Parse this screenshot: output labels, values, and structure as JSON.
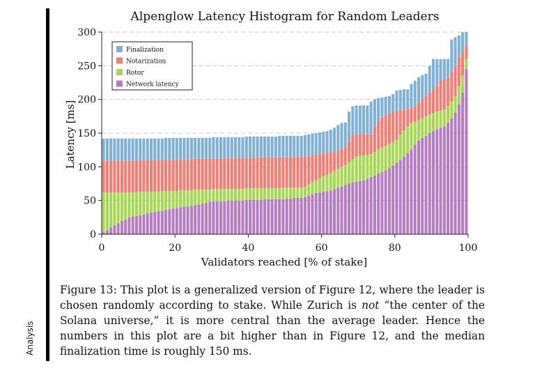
{
  "side_label": "Analysis",
  "chart_data": {
    "type": "bar",
    "stacked": true,
    "title": "Alpenglow Latency Histogram for Random Leaders",
    "xlabel": "Validators reached [% of stake]",
    "ylabel": "Latency [ms]",
    "xlim": [
      0,
      100
    ],
    "ylim": [
      0,
      300
    ],
    "x_ticks": [
      0,
      20,
      40,
      60,
      80,
      100
    ],
    "y_ticks": [
      0,
      50,
      100,
      150,
      200,
      250,
      300
    ],
    "grid": "horizontal dashed",
    "legend_position": "top-left",
    "colors": {
      "finalization": "#7eb0d8",
      "notarization": "#f47c73",
      "rotor": "#a6d854",
      "network": "#b57cc4"
    },
    "legend": [
      "Finalization",
      "Notarization",
      "Rotor",
      "Network latency"
    ],
    "series_order_bottom_to_top": [
      "network",
      "rotor",
      "notarization",
      "finalization"
    ],
    "x": [
      1,
      2,
      3,
      4,
      5,
      6,
      7,
      8,
      9,
      10,
      11,
      12,
      13,
      14,
      15,
      16,
      17,
      18,
      19,
      20,
      21,
      22,
      23,
      24,
      25,
      26,
      27,
      28,
      29,
      30,
      31,
      32,
      33,
      34,
      35,
      36,
      37,
      38,
      39,
      40,
      41,
      42,
      43,
      44,
      45,
      46,
      47,
      48,
      49,
      50,
      51,
      52,
      53,
      54,
      55,
      56,
      57,
      58,
      59,
      60,
      61,
      62,
      63,
      64,
      65,
      66,
      67,
      68,
      69,
      70,
      71,
      72,
      73,
      74,
      75,
      76,
      77,
      78,
      79,
      80,
      81,
      82,
      83,
      84,
      85,
      86,
      87,
      88,
      89,
      90,
      91,
      92,
      93,
      94,
      95,
      96,
      97,
      98,
      99,
      100
    ],
    "network_latency": [
      3,
      6,
      10,
      13,
      16,
      20,
      22,
      25,
      26,
      27,
      28,
      29,
      31,
      32,
      33,
      34,
      35,
      36,
      37,
      38,
      39,
      40,
      41,
      41,
      42,
      43,
      44,
      45,
      46,
      48,
      49,
      49,
      49,
      49,
      50,
      50,
      50,
      50,
      50,
      51,
      51,
      51,
      51,
      51,
      52,
      52,
      52,
      52,
      52,
      52,
      53,
      53,
      54,
      54,
      54,
      55,
      57,
      59,
      61,
      62,
      63,
      64,
      65,
      67,
      69,
      71,
      73,
      75,
      77,
      78,
      79,
      80,
      82,
      85,
      87,
      90,
      92,
      95,
      98,
      102,
      106,
      110,
      115,
      120,
      126,
      133,
      139,
      143,
      146,
      150,
      153,
      156,
      158,
      160,
      165,
      172,
      180,
      193,
      210,
      245
    ],
    "rotor_end": [
      62,
      62,
      62,
      62,
      62,
      62,
      62,
      62,
      62,
      62,
      63,
      63,
      63,
      63,
      63,
      63,
      64,
      64,
      64,
      64,
      64,
      65,
      65,
      65,
      65,
      66,
      66,
      66,
      66,
      66,
      67,
      67,
      67,
      67,
      67,
      67,
      67,
      67,
      67,
      68,
      68,
      68,
      68,
      68,
      68,
      68,
      68,
      68,
      68,
      69,
      69,
      69,
      69,
      69,
      69,
      70,
      74,
      77,
      80,
      83,
      86,
      88,
      91,
      94,
      97,
      100,
      103,
      107,
      111,
      115,
      116,
      117,
      118,
      119,
      122,
      126,
      128,
      131,
      134,
      137,
      140,
      148,
      154,
      160,
      165,
      167,
      169,
      172,
      175,
      178,
      180,
      182,
      183,
      185,
      190,
      197,
      205,
      220,
      235,
      260
    ],
    "notarization_end": [
      109,
      109,
      109,
      109,
      109,
      109,
      109,
      109,
      109,
      109,
      110,
      110,
      110,
      110,
      110,
      110,
      110,
      110,
      110,
      111,
      111,
      111,
      111,
      111,
      111,
      112,
      112,
      112,
      112,
      112,
      112,
      112,
      112,
      113,
      113,
      113,
      113,
      113,
      113,
      113,
      113,
      114,
      114,
      114,
      114,
      114,
      114,
      114,
      114,
      114,
      114,
      114,
      115,
      115,
      115,
      115,
      116,
      117,
      118,
      119,
      120,
      121,
      122,
      123,
      124,
      127,
      130,
      138,
      147,
      148,
      149,
      148,
      148,
      148,
      160,
      168,
      174,
      177,
      179,
      181,
      183,
      184,
      185,
      186,
      187,
      190,
      195,
      200,
      205,
      210,
      215,
      220,
      228,
      230,
      232,
      240,
      250,
      262,
      270,
      280
    ],
    "finalization_end": [
      142,
      142,
      142,
      142,
      142,
      142,
      142,
      142,
      142,
      142,
      142,
      142,
      142,
      142,
      142,
      142,
      142,
      143,
      143,
      143,
      143,
      143,
      143,
      143,
      143,
      143,
      143,
      143,
      143,
      143,
      144,
      144,
      144,
      144,
      144,
      144,
      144,
      144,
      144,
      145,
      145,
      145,
      145,
      145,
      145,
      145,
      145,
      145,
      146,
      146,
      146,
      146,
      146,
      146,
      146,
      147,
      148,
      149,
      150,
      151,
      152,
      153,
      155,
      158,
      162,
      165,
      166,
      182,
      190,
      191,
      191,
      191,
      191,
      197,
      200,
      202,
      203,
      204,
      205,
      208,
      213,
      214,
      215,
      215,
      223,
      228,
      233,
      236,
      238,
      250,
      260,
      260,
      260,
      260,
      260,
      289,
      292,
      295,
      300,
      300
    ]
  },
  "caption": {
    "before_em": "Figure 13: This plot is a generalized version of Figure 12, where the leader is chosen randomly according to stake. While Zurich is ",
    "em": "not",
    "after_em": " “the center of the Solana universe,” it is more central than the average leader. Hence the numbers in this plot are a bit higher than in Figure 12, and the median finalization time is roughly 150 ms."
  }
}
